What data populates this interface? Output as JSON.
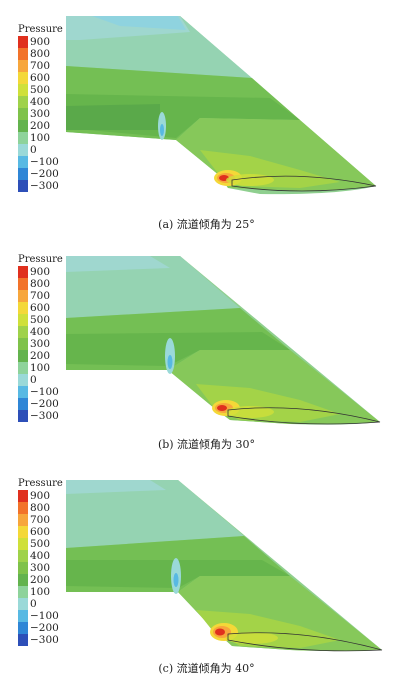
{
  "legend": {
    "title": "Pressure",
    "labels": [
      "900",
      "800",
      "700",
      "600",
      "500",
      "400",
      "300",
      "200",
      "100",
      "0",
      "−100",
      "−200",
      "−300"
    ],
    "colors": [
      "#e0301e",
      "#f2732a",
      "#f7a63c",
      "#f4d838",
      "#cfe03a",
      "#9fd24a",
      "#7fc24a",
      "#63b34e",
      "#8ed39b",
      "#9ad9d8",
      "#58b9e3",
      "#2f86d6",
      "#2d4fb8"
    ]
  },
  "panels": [
    {
      "caption": "(a) 流道倾角为 25°"
    },
    {
      "caption": "(b) 流道倾角为 30°"
    },
    {
      "caption": "(c) 流道倾角为 40°"
    }
  ]
}
